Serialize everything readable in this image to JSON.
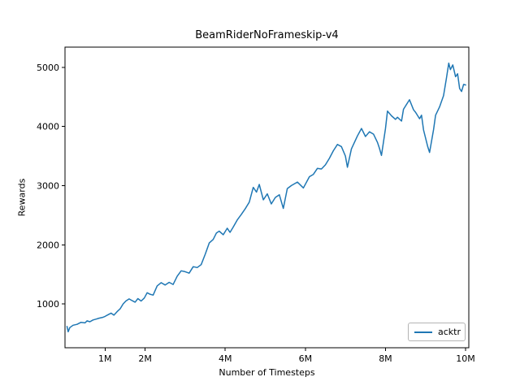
{
  "figure": {
    "background": "#ffffff"
  },
  "chart_data": {
    "type": "line",
    "title": "BeamRiderNoFrameskip-v4",
    "xlabel": "Number of Timesteps",
    "ylabel": "Rewards",
    "x_unit": "millions of timesteps",
    "xlim": [
      0,
      10.08
    ],
    "ylim": [
      260,
      5340
    ],
    "xticks": [
      {
        "v": 1,
        "label": "1M"
      },
      {
        "v": 2,
        "label": "2M"
      },
      {
        "v": 4,
        "label": "4M"
      },
      {
        "v": 6,
        "label": "6M"
      },
      {
        "v": 8,
        "label": "8M"
      },
      {
        "v": 10,
        "label": "10M"
      }
    ],
    "yticks": [
      {
        "v": 1000,
        "label": "1000"
      },
      {
        "v": 2000,
        "label": "2000"
      },
      {
        "v": 3000,
        "label": "3000"
      },
      {
        "v": 4000,
        "label": "4000"
      },
      {
        "v": 5000,
        "label": "5000"
      }
    ],
    "grid": false,
    "spine_color": "#000000",
    "legend": {
      "position": "lower right",
      "entries": [
        {
          "label": "acktr",
          "color": "#1f77b4"
        }
      ]
    },
    "series": [
      {
        "name": "acktr",
        "color": "#1f77b4",
        "x": [
          0.05,
          0.08,
          0.12,
          0.2,
          0.3,
          0.4,
          0.5,
          0.55,
          0.62,
          0.7,
          0.78,
          0.85,
          0.95,
          1.0,
          1.08,
          1.15,
          1.22,
          1.3,
          1.38,
          1.45,
          1.52,
          1.6,
          1.68,
          1.75,
          1.82,
          1.9,
          1.98,
          2.05,
          2.12,
          2.2,
          2.3,
          2.4,
          2.5,
          2.6,
          2.7,
          2.8,
          2.9,
          3.0,
          3.1,
          3.2,
          3.3,
          3.4,
          3.5,
          3.6,
          3.7,
          3.78,
          3.85,
          3.95,
          4.05,
          4.12,
          4.2,
          4.3,
          4.4,
          4.5,
          4.6,
          4.7,
          4.78,
          4.85,
          4.95,
          5.05,
          5.15,
          5.25,
          5.35,
          5.45,
          5.55,
          5.65,
          5.8,
          5.95,
          6.1,
          6.2,
          6.3,
          6.4,
          6.5,
          6.6,
          6.7,
          6.8,
          6.9,
          7.0,
          7.05,
          7.15,
          7.3,
          7.4,
          7.5,
          7.6,
          7.7,
          7.8,
          7.85,
          7.9,
          8.0,
          8.05,
          8.15,
          8.25,
          8.3,
          8.4,
          8.45,
          8.55,
          8.6,
          8.7,
          8.75,
          8.85,
          8.9,
          8.95,
          9.05,
          9.1,
          9.2,
          9.25,
          9.35,
          9.45,
          9.52,
          9.58,
          9.62,
          9.68,
          9.75,
          9.8,
          9.85,
          9.9,
          9.95,
          10.0
        ],
        "y": [
          620,
          530,
          600,
          640,
          655,
          690,
          680,
          715,
          700,
          730,
          745,
          760,
          775,
          790,
          820,
          845,
          810,
          870,
          920,
          1000,
          1050,
          1085,
          1055,
          1030,
          1090,
          1050,
          1100,
          1190,
          1165,
          1150,
          1305,
          1360,
          1320,
          1365,
          1330,
          1470,
          1560,
          1545,
          1520,
          1630,
          1615,
          1665,
          1840,
          2030,
          2090,
          2200,
          2230,
          2170,
          2280,
          2210,
          2300,
          2420,
          2510,
          2610,
          2720,
          2970,
          2890,
          3020,
          2760,
          2860,
          2690,
          2800,
          2845,
          2615,
          2950,
          3000,
          3060,
          2960,
          3150,
          3190,
          3290,
          3280,
          3350,
          3460,
          3590,
          3695,
          3660,
          3500,
          3310,
          3620,
          3840,
          3965,
          3830,
          3910,
          3870,
          3730,
          3630,
          3510,
          3960,
          4260,
          4180,
          4120,
          4155,
          4090,
          4290,
          4400,
          4450,
          4280,
          4240,
          4130,
          4190,
          3940,
          3670,
          3560,
          3945,
          4190,
          4330,
          4520,
          4810,
          5070,
          4960,
          5040,
          4840,
          4890,
          4640,
          4590,
          4710,
          4700
        ]
      }
    ]
  }
}
